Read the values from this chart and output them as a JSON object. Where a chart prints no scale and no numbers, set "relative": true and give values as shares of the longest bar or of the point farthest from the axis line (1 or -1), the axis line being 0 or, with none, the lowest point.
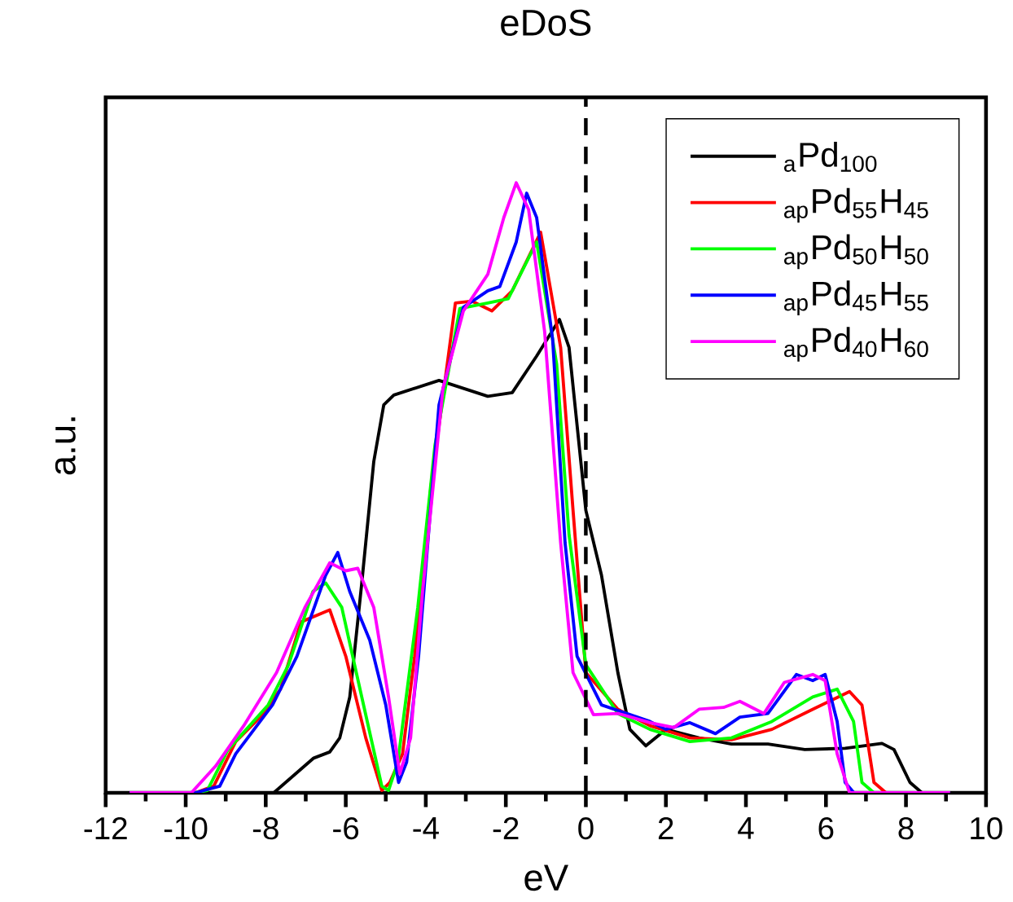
{
  "chart_data": {
    "type": "line",
    "title": "eDoS",
    "xlabel": "eV",
    "ylabel": "a.u.",
    "relative": true,
    "xlim": [
      -12,
      10
    ],
    "xticks": [
      -12,
      -10,
      -8,
      -6,
      -4,
      -2,
      0,
      2,
      4,
      6,
      8,
      10
    ],
    "legend": "top right",
    "marker": "none",
    "line_style": "solid",
    "ref_lines": [
      {
        "axis": "x",
        "value": 0,
        "color": "#000000",
        "line_style": "dashed"
      }
    ],
    "series": [
      {
        "name": "$_{a}$Pd$_{100}$",
        "color": "#000000",
        "x": [
          -7.8,
          -6.8,
          -6.4,
          -6.15,
          -5.9,
          -5.6,
          -5.3,
          -5.05,
          -4.8,
          -3.67,
          -2.45,
          -1.84,
          -1.23,
          -0.66,
          -0.42,
          0,
          0.39,
          0.8,
          1.1,
          1.5,
          2.0,
          2.83,
          3.64,
          4.55,
          5.47,
          6.48,
          7.4,
          7.7,
          8.1,
          8.4,
          9.1
        ],
        "values": [
          0,
          0.057,
          0.067,
          0.09,
          0.157,
          0.344,
          0.543,
          0.636,
          0.652,
          0.676,
          0.65,
          0.656,
          0.716,
          0.776,
          0.73,
          0.463,
          0.357,
          0.197,
          0.104,
          0.077,
          0.104,
          0.09,
          0.08,
          0.08,
          0.071,
          0.073,
          0.081,
          0.071,
          0.017,
          0,
          0
        ]
      },
      {
        "name": "$_{ap}$Pd$_{55}$H$_{45}$",
        "color": "#ff0000",
        "x": [
          -11.4,
          -9.76,
          -9.3,
          -8.75,
          -8.14,
          -7.63,
          -7.12,
          -6.4,
          -6.0,
          -5.5,
          -5.1,
          -4.9,
          -4.58,
          -4.28,
          -3.87,
          -3.26,
          -2.85,
          -2.35,
          -1.84,
          -1.13,
          -0.63,
          -0.32,
          0,
          0.8,
          1.6,
          2.6,
          3.64,
          4.65,
          5.67,
          6.59,
          6.9,
          7.2,
          7.5,
          9.1
        ],
        "values": [
          0,
          0,
          0.011,
          0.084,
          0.124,
          0.17,
          0.28,
          0.3,
          0.224,
          0.09,
          0.004,
          0.017,
          0.064,
          0.224,
          0.503,
          0.803,
          0.806,
          0.79,
          0.823,
          0.919,
          0.73,
          0.463,
          0.197,
          0.137,
          0.11,
          0.09,
          0.087,
          0.104,
          0.137,
          0.166,
          0.144,
          0.017,
          0,
          0
        ]
      },
      {
        "name": "$_{ap}$Pd$_{50}$H$_{50}$",
        "color": "#00ff00",
        "x": [
          -11.4,
          -9.76,
          -9.46,
          -8.95,
          -7.94,
          -7.43,
          -6.82,
          -6.5,
          -6.1,
          -5.6,
          -5.1,
          -4.93,
          -4.7,
          -4.2,
          -3.77,
          -3.15,
          -2.45,
          -1.94,
          -1.23,
          -0.73,
          -0.42,
          0,
          0.8,
          1.6,
          2.6,
          3.64,
          4.65,
          5.67,
          6.28,
          6.69,
          6.9,
          7.2,
          9.1
        ],
        "values": [
          0,
          0,
          0.004,
          0.07,
          0.144,
          0.21,
          0.33,
          0.344,
          0.304,
          0.157,
          0.011,
          0.004,
          0.05,
          0.304,
          0.57,
          0.794,
          0.803,
          0.81,
          0.903,
          0.703,
          0.423,
          0.21,
          0.13,
          0.104,
          0.084,
          0.09,
          0.117,
          0.157,
          0.17,
          0.117,
          0.017,
          0,
          0
        ]
      },
      {
        "name": "$_{ap}$Pd$_{45}$H$_{55}$",
        "color": "#0000ff",
        "x": [
          -11.4,
          -9.76,
          -9.15,
          -8.75,
          -7.83,
          -7.22,
          -6.5,
          -6.2,
          -5.9,
          -5.4,
          -5.0,
          -4.68,
          -4.48,
          -4.18,
          -3.67,
          -3.06,
          -2.45,
          -2.15,
          -1.74,
          -1.48,
          -1.23,
          -0.83,
          -0.52,
          -0.22,
          0.39,
          1.6,
          2.0,
          2.6,
          3.24,
          3.85,
          4.55,
          5.26,
          5.67,
          5.98,
          6.28,
          6.48,
          6.7,
          9.1
        ],
        "values": [
          0,
          0,
          0.011,
          0.064,
          0.144,
          0.224,
          0.357,
          0.394,
          0.33,
          0.25,
          0.144,
          0.017,
          0.05,
          0.224,
          0.636,
          0.796,
          0.823,
          0.83,
          0.903,
          0.983,
          0.943,
          0.743,
          0.41,
          0.224,
          0.144,
          0.117,
          0.104,
          0.115,
          0.097,
          0.124,
          0.13,
          0.194,
          0.184,
          0.194,
          0.117,
          0.017,
          0,
          0
        ]
      },
      {
        "name": "$_{ap}$Pd$_{40}$H$_{60}$",
        "color": "#ff00ff",
        "x": [
          -11.4,
          -9.86,
          -9.25,
          -8.55,
          -7.73,
          -7.02,
          -6.4,
          -6.0,
          -5.7,
          -5.3,
          -4.93,
          -4.65,
          -4.38,
          -4.08,
          -3.57,
          -3.06,
          -2.45,
          -2.05,
          -1.74,
          -1.43,
          -1.03,
          -0.63,
          -0.32,
          0.19,
          0.8,
          1.6,
          2.2,
          2.83,
          3.44,
          3.85,
          4.45,
          4.96,
          5.67,
          5.98,
          6.28,
          6.59,
          9.1
        ],
        "values": [
          0,
          0,
          0.044,
          0.11,
          0.197,
          0.304,
          0.377,
          0.364,
          0.368,
          0.304,
          0.157,
          0.031,
          0.09,
          0.33,
          0.663,
          0.79,
          0.85,
          0.943,
          1.0,
          0.956,
          0.756,
          0.41,
          0.197,
          0.128,
          0.13,
          0.115,
          0.107,
          0.137,
          0.14,
          0.15,
          0.13,
          0.181,
          0.194,
          0.184,
          0.064,
          0,
          0
        ]
      }
    ]
  }
}
